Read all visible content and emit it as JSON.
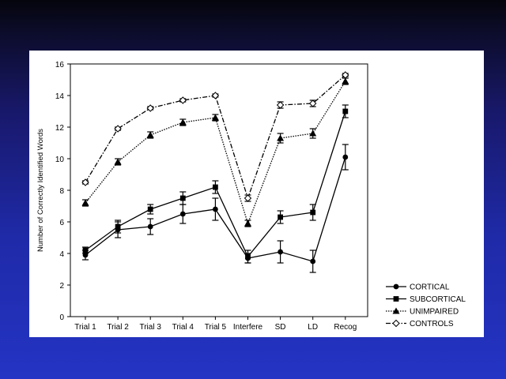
{
  "chart_data": {
    "type": "line",
    "title": "",
    "xlabel": "",
    "ylabel": "Number of Correctly Identified Words",
    "ylim": [
      0,
      16
    ],
    "yticks": [
      0,
      2,
      4,
      6,
      8,
      10,
      12,
      14,
      16
    ],
    "grid": false,
    "legend_position": "bottom-right",
    "categories": [
      "Trial 1",
      "Trial 2",
      "Trial 3",
      "Trial 4",
      "Trial 5",
      "Interfere",
      "SD",
      "LD",
      "Recog"
    ],
    "series": [
      {
        "name": "CORTICAL",
        "marker": "circle",
        "line": "solid",
        "values": [
          3.9,
          5.5,
          5.7,
          6.5,
          6.8,
          3.7,
          4.1,
          3.5,
          10.1
        ],
        "errors": [
          0.3,
          0.5,
          0.5,
          0.6,
          0.7,
          0.3,
          0.7,
          0.7,
          0.8
        ]
      },
      {
        "name": "SUBCORTICAL",
        "marker": "square",
        "line": "solid",
        "values": [
          4.2,
          5.7,
          6.8,
          7.5,
          8.2,
          3.8,
          6.3,
          6.6,
          13.0
        ],
        "errors": [
          0.2,
          0.4,
          0.3,
          0.4,
          0.4,
          0.4,
          0.4,
          0.5,
          0.4
        ]
      },
      {
        "name": "UNIMPAIRED",
        "marker": "triangle",
        "line": "dotted",
        "values": [
          7.2,
          9.8,
          11.5,
          12.3,
          12.6,
          5.9,
          11.3,
          11.6,
          14.9
        ],
        "errors": [
          0.2,
          0.2,
          0.2,
          0.2,
          0.2,
          0.2,
          0.3,
          0.3,
          0.2
        ]
      },
      {
        "name": "CONTROLS",
        "marker": "diamond",
        "line": "dashdot",
        "values": [
          8.5,
          11.9,
          13.2,
          13.7,
          14.0,
          7.5,
          13.4,
          13.5,
          15.3
        ],
        "errors": [
          0.1,
          0.1,
          0.1,
          0.1,
          0.1,
          0.2,
          0.2,
          0.2,
          0.1
        ]
      }
    ]
  }
}
